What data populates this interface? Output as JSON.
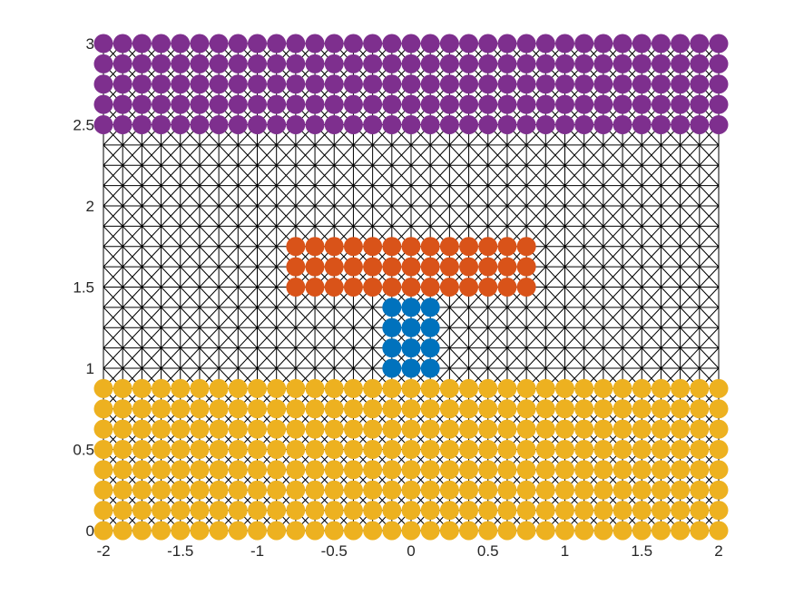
{
  "chart_data": {
    "type": "scatter",
    "title": "",
    "xlabel": "",
    "ylabel": "",
    "xlim": [
      -2,
      2
    ],
    "ylim": [
      0,
      3
    ],
    "xticks": [
      -2,
      -1.5,
      -1,
      -0.5,
      0,
      0.5,
      1,
      1.5,
      2
    ],
    "xtick_labels": [
      "-2",
      "-1.5",
      "-1",
      "-0.5",
      "0",
      "0.5",
      "1",
      "1.5",
      "2"
    ],
    "yticks": [
      0,
      0.5,
      1,
      1.5,
      2,
      2.5,
      3
    ],
    "ytick_labels": [
      "0",
      "0.5",
      "1",
      "1.5",
      "2",
      "2.5",
      "3"
    ],
    "grid": false,
    "axes_box": false,
    "mesh": {
      "description": "triangular mesh with crossed diagonals",
      "x_range": [
        -2,
        2
      ],
      "y_range": [
        0,
        3
      ],
      "x_step": 0.125,
      "y_step": 0.125,
      "color": "#000000"
    },
    "series": [
      {
        "color": "#EDB120",
        "x_range": [
          -2,
          2
        ],
        "x_step": 0.125,
        "y_range": [
          0,
          0.875
        ],
        "y_step": 0.125
      },
      {
        "color": "#0072BD",
        "x_range": [
          -0.125,
          0.125
        ],
        "x_step": 0.125,
        "y_range": [
          1,
          1.375
        ],
        "y_step": 0.125
      },
      {
        "color": "#D95319",
        "x_range": [
          -0.75,
          0.75
        ],
        "x_step": 0.125,
        "y_range": [
          1.5,
          1.75
        ],
        "y_step": 0.125
      },
      {
        "color": "#7E2F8E",
        "x_range": [
          -2,
          2
        ],
        "x_step": 0.125,
        "y_range": [
          2.5,
          3
        ],
        "y_step": 0.125
      }
    ]
  }
}
